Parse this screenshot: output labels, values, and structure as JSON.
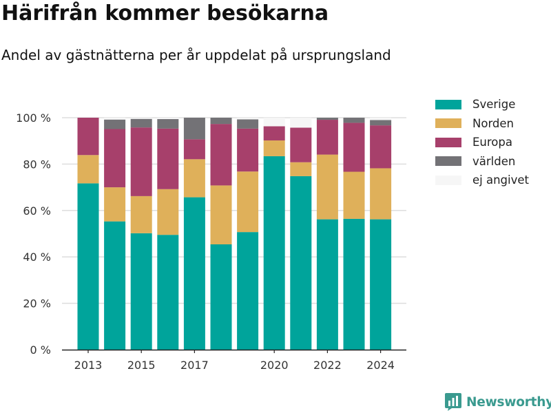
{
  "header": {
    "title": "Härifrån kommer besökarna",
    "subtitle": "Andel av gästnätterna per år uppdelat på ursprungsland"
  },
  "chart_data": {
    "type": "bar",
    "stacked": true,
    "categories": [
      "2013",
      "2014",
      "2015",
      "2016",
      "2017",
      "2018",
      "2019",
      "2020",
      "2021",
      "2022",
      "2023",
      "2024"
    ],
    "x_tick_labels": [
      {
        "category": "2013",
        "label": "2013"
      },
      {
        "category": "2015",
        "label": "2015"
      },
      {
        "category": "2017",
        "label": "2017"
      },
      {
        "category": "2020",
        "label": "2020"
      },
      {
        "category": "2022",
        "label": "2022"
      },
      {
        "category": "2024",
        "label": "2024"
      }
    ],
    "y_ticks": [
      {
        "value": 0,
        "label": "0 %"
      },
      {
        "value": 20,
        "label": "20 %"
      },
      {
        "value": 40,
        "label": "40 %"
      },
      {
        "value": 60,
        "label": "60 %"
      },
      {
        "value": 80,
        "label": "80 %"
      },
      {
        "value": 100,
        "label": "100 %"
      }
    ],
    "ylim": [
      0,
      100
    ],
    "grid": true,
    "legend_position": "right",
    "series": [
      {
        "name": "Sverige",
        "color": "#00a49b",
        "values": [
          71.7,
          55.3,
          50.2,
          49.5,
          65.7,
          45.4,
          50.7,
          83.4,
          74.8,
          56.2,
          56.4,
          56.2
        ]
      },
      {
        "name": "Norden",
        "color": "#dfb05a",
        "values": [
          12.2,
          14.7,
          16.0,
          19.7,
          16.4,
          25.4,
          26.1,
          6.8,
          6.0,
          27.9,
          20.3,
          22.0
        ]
      },
      {
        "name": "Europa",
        "color": "#a7406b",
        "values": [
          16.1,
          25.1,
          29.6,
          26.1,
          8.6,
          26.5,
          18.5,
          6.1,
          14.9,
          15.0,
          21.1,
          18.5
        ]
      },
      {
        "name": "världen",
        "color": "#737276",
        "values": [
          0.0,
          4.1,
          3.7,
          4.1,
          9.3,
          2.7,
          4.0,
          0.0,
          0.0,
          0.9,
          2.2,
          2.3
        ]
      },
      {
        "name": "ej angivet",
        "color": "#f6f6f6",
        "values": [
          0.0,
          0.8,
          0.5,
          0.6,
          0.0,
          0.0,
          0.7,
          3.7,
          4.3,
          0.0,
          0.0,
          1.0
        ]
      }
    ]
  },
  "branding": {
    "logo_text": "Newsworthy",
    "logo_icon": "bar-chart-speech-bubble-icon"
  }
}
